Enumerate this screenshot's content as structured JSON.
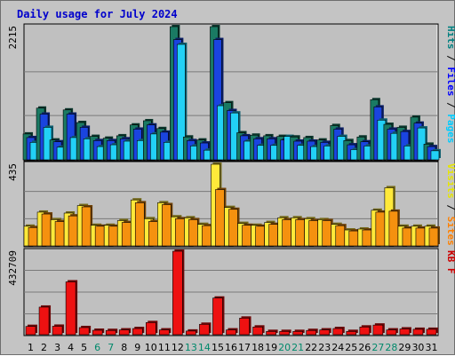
{
  "chart_data": {
    "type": "bar",
    "title": "Daily usage for July 2024",
    "categories": [
      "1",
      "2",
      "3",
      "4",
      "5",
      "6",
      "7",
      "8",
      "9",
      "10",
      "11",
      "12",
      "13",
      "14",
      "15",
      "16",
      "17",
      "18",
      "19",
      "20",
      "21",
      "22",
      "23",
      "24",
      "25",
      "26",
      "27",
      "28",
      "29",
      "30",
      "31"
    ],
    "weekend_days": [
      "6",
      "7",
      "13",
      "14",
      "20",
      "21",
      "27",
      "28"
    ],
    "panels": [
      {
        "id": "top",
        "ymax": 2215,
        "max_label": "2215",
        "legend": [
          {
            "text": "Hits",
            "color": "#008080"
          },
          {
            "text": " / ",
            "color": "#000000"
          },
          {
            "text": "Files",
            "color": "#0000ff"
          },
          {
            "text": " / ",
            "color": "#000000"
          },
          {
            "text": "Pages",
            "color": "#00ccff"
          }
        ],
        "series": [
          {
            "name": "Hits",
            "color": "#1a7a63",
            "values": [
              430,
              860,
              330,
              830,
              620,
              390,
              360,
              400,
              580,
              650,
              520,
              2215,
              380,
              330,
              2215,
              950,
              450,
              410,
              400,
              390,
              380,
              370,
              330,
              570,
              320,
              380,
              1000,
              590,
              540,
              710,
              260
            ]
          },
          {
            "name": "Files",
            "color": "#1a44e0",
            "values": [
              370,
              760,
              300,
              760,
              540,
              320,
              320,
              350,
              510,
              580,
              460,
              2000,
              320,
              280,
              2000,
              820,
              400,
              350,
              350,
              330,
              310,
              310,
              290,
              510,
              250,
              300,
              880,
              510,
              470,
              610,
              220
            ]
          },
          {
            "name": "Pages",
            "color": "#22d1f6",
            "values": [
              290,
              540,
              210,
              370,
              350,
              220,
              250,
              310,
              320,
              430,
              290,
              1920,
              230,
              160,
              900,
              780,
              310,
              240,
              240,
              390,
              240,
              220,
              230,
              390,
              170,
              230,
              660,
              440,
              230,
              530,
              150
            ]
          }
        ]
      },
      {
        "id": "middle",
        "ymax": 435,
        "max_label": "435",
        "legend": [
          {
            "text": "Visits",
            "color": "#e6e600"
          },
          {
            "text": " / ",
            "color": "#000000"
          },
          {
            "text": "Sites",
            "color": "#ff8000"
          }
        ],
        "series": [
          {
            "name": "Visits",
            "color": "#ffe93a",
            "values": [
              105,
              180,
              140,
              175,
              215,
              110,
              110,
              135,
              245,
              145,
              230,
              155,
              150,
              115,
              435,
              205,
              120,
              110,
              125,
              150,
              150,
              145,
              140,
              115,
              85,
              90,
              190,
              310,
              105,
              105,
              105
            ]
          },
          {
            "name": "Sites",
            "color": "#f5910f",
            "values": [
              98,
              170,
              130,
              160,
              208,
              105,
              105,
              125,
              230,
              130,
              220,
              145,
              140,
              108,
              300,
              195,
              110,
              105,
              115,
              140,
              140,
              135,
              135,
              108,
              80,
              85,
              180,
              185,
              95,
              95,
              95
            ]
          }
        ]
      },
      {
        "id": "bottom",
        "ymax": 432709,
        "max_label": "432709",
        "legend": [
          {
            "text": "KB F",
            "color": "#cc0000"
          }
        ],
        "series": [
          {
            "name": "KB F",
            "color": "#ee1111",
            "values": [
              43000,
              143000,
              44000,
              274000,
              37000,
              23000,
              22000,
              25000,
              32000,
              63000,
              25000,
              432709,
              19000,
              54000,
              190000,
              25000,
              86000,
              40000,
              17000,
              17000,
              17000,
              22000,
              25000,
              32000,
              17000,
              40000,
              50000,
              25000,
              30000,
              28000,
              28000
            ]
          }
        ]
      }
    ]
  }
}
